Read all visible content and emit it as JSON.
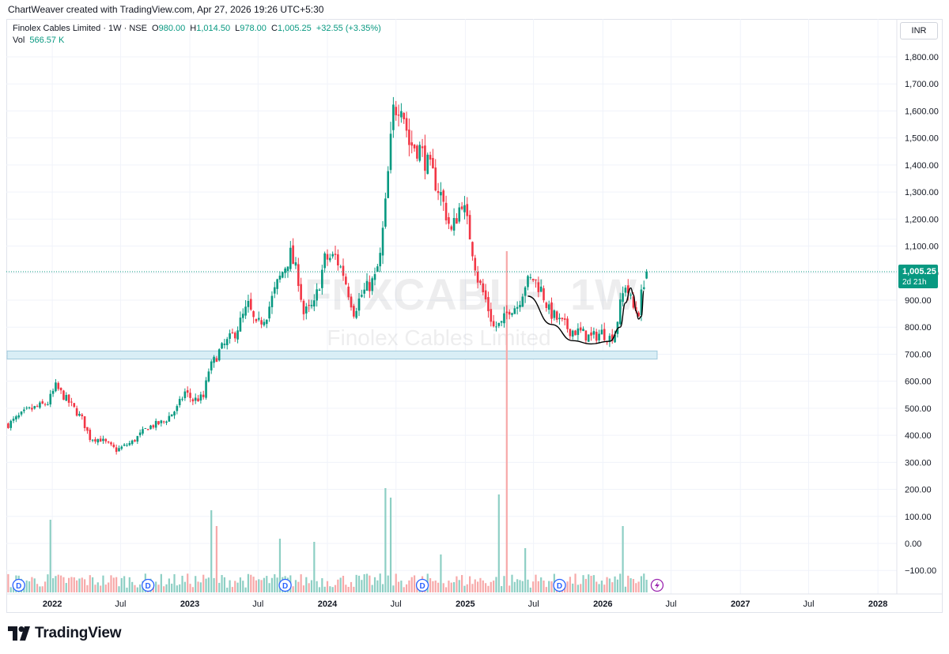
{
  "header": {
    "attribution": "ChartWeaver created with TradingView.com, Apr 27, 2026 19:26 UTC+5:30"
  },
  "legend": {
    "symbol": "Finolex Cables Limited · 1W · NSE",
    "o_label": "O",
    "o_value": "980.00",
    "h_label": "H",
    "h_value": "1,014.50",
    "l_label": "L",
    "l_value": "978.00",
    "c_label": "C",
    "c_value": "1,005.25",
    "change": "+32.55 (+3.35%)",
    "vol_label": "Vol",
    "vol_value": "566.57 K"
  },
  "currency": "INR",
  "watermark": {
    "line1": "FNXCABLE, 1W",
    "line2": "Finolex Cables Limited"
  },
  "footer": {
    "brand": "TradingView"
  },
  "colors": {
    "up": "#089981",
    "down": "#f23645",
    "vol_up": "#8dcfc4",
    "vol_down": "#f7a9a9",
    "zone": "#d9eef6",
    "zone_border": "#9fc9dc",
    "curve": "#000000",
    "event_d": "#2962ff",
    "event_bolt": "#9c27b0"
  },
  "price_label": {
    "value": "1,005.25",
    "countdown": "2d 21h"
  },
  "chart_data": {
    "type": "candlestick",
    "interval": "1W",
    "x_range": [
      "2021-09",
      "2028-02"
    ],
    "y_range": [
      -140,
      1880
    ],
    "y_ticks": [
      -100,
      0,
      100,
      200,
      300,
      400,
      500,
      600,
      700,
      800,
      900,
      1000,
      1100,
      1200,
      1300,
      1400,
      1500,
      1600,
      1700,
      1800
    ],
    "y_tick_labels": [
      "−100.00",
      "0.00",
      "100.00",
      "200.00",
      "300.00",
      "400.00",
      "500.00",
      "600.00",
      "700.00",
      "800.00",
      "900.00",
      "1,000.00",
      "1,100.00",
      "1,200.00",
      "1,300.00",
      "1,400.00",
      "1,500.00",
      "1,600.00",
      "1,700.00",
      "1,800.00"
    ],
    "x_ticks": [
      {
        "label": "2022",
        "date": "2022-01-01"
      },
      {
        "label": "Jul",
        "date": "2022-07-01"
      },
      {
        "label": "2023",
        "date": "2023-01-01"
      },
      {
        "label": "Jul",
        "date": "2023-07-01"
      },
      {
        "label": "2024",
        "date": "2024-01-01"
      },
      {
        "label": "Jul",
        "date": "2024-07-01"
      },
      {
        "label": "2025",
        "date": "2025-01-01"
      },
      {
        "label": "Jul",
        "date": "2025-07-01"
      },
      {
        "label": "2026",
        "date": "2026-01-01"
      },
      {
        "label": "Jul",
        "date": "2026-07-01"
      },
      {
        "label": "2027",
        "date": "2027-01-01"
      },
      {
        "label": "Jul",
        "date": "2027-07-01"
      },
      {
        "label": "2028",
        "date": "2028-01-01"
      }
    ],
    "first_bar_date": "2021-09-06",
    "last_bar_date": "2026-04-27",
    "close_anchors": [
      [
        "2021-09-06",
        440
      ],
      [
        "2021-10-25",
        490
      ],
      [
        "2021-12-20",
        520
      ],
      [
        "2022-01-10",
        580
      ],
      [
        "2022-02-21",
        510
      ],
      [
        "2022-03-21",
        460
      ],
      [
        "2022-04-11",
        390
      ],
      [
        "2022-05-09",
        385
      ],
      [
        "2022-06-20",
        345
      ],
      [
        "2022-08-01",
        375
      ],
      [
        "2022-09-12",
        430
      ],
      [
        "2022-10-24",
        450
      ],
      [
        "2022-11-28",
        500
      ],
      [
        "2022-12-19",
        560
      ],
      [
        "2023-01-09",
        530
      ],
      [
        "2023-02-06",
        540
      ],
      [
        "2023-02-20",
        640
      ],
      [
        "2023-03-20",
        710
      ],
      [
        "2023-05-01",
        780
      ],
      [
        "2023-06-05",
        880
      ],
      [
        "2023-06-26",
        800
      ],
      [
        "2023-07-24",
        850
      ],
      [
        "2023-08-21",
        960
      ],
      [
        "2023-09-25",
        1070
      ],
      [
        "2023-10-16",
        980
      ],
      [
        "2023-10-30",
        850
      ],
      [
        "2023-11-27",
        880
      ],
      [
        "2023-12-25",
        1050
      ],
      [
        "2024-01-22",
        1060
      ],
      [
        "2024-02-12",
        1000
      ],
      [
        "2024-03-11",
        860
      ],
      [
        "2024-04-01",
        920
      ],
      [
        "2024-05-06",
        980
      ],
      [
        "2024-05-20",
        1060
      ],
      [
        "2024-06-03",
        1250
      ],
      [
        "2024-06-24",
        1600
      ],
      [
        "2024-07-15",
        1640
      ],
      [
        "2024-08-05",
        1480
      ],
      [
        "2024-09-02",
        1460
      ],
      [
        "2024-10-07",
        1360
      ],
      [
        "2024-10-28",
        1290
      ],
      [
        "2024-11-25",
        1150
      ],
      [
        "2024-12-23",
        1270
      ],
      [
        "2025-01-13",
        1140
      ],
      [
        "2025-02-03",
        980
      ],
      [
        "2025-02-24",
        900
      ],
      [
        "2025-03-17",
        800
      ],
      [
        "2025-04-07",
        810
      ],
      [
        "2025-04-28",
        870
      ],
      [
        "2025-05-19",
        880
      ],
      [
        "2025-06-09",
        960
      ],
      [
        "2025-06-30",
        980
      ],
      [
        "2025-07-21",
        940
      ],
      [
        "2025-08-11",
        860
      ],
      [
        "2025-09-08",
        820
      ],
      [
        "2025-10-06",
        790
      ],
      [
        "2025-11-03",
        780
      ],
      [
        "2025-12-01",
        760
      ],
      [
        "2025-12-29",
        780
      ],
      [
        "2026-01-19",
        760
      ],
      [
        "2026-02-02",
        780
      ],
      [
        "2026-02-16",
        880
      ],
      [
        "2026-03-02",
        960
      ],
      [
        "2026-03-23",
        870
      ],
      [
        "2026-04-06",
        860
      ],
      [
        "2026-04-20",
        972.7
      ],
      [
        "2026-04-27",
        1005.25
      ]
    ],
    "last_bar": {
      "date": "2026-04-27",
      "open": 980.0,
      "high": 1014.5,
      "low": 978.0,
      "close": 1005.25,
      "volume": 566570
    },
    "volume_spikes": [
      {
        "date": "2021-12-27",
        "volume": 2.3
      },
      {
        "date": "2023-02-27",
        "volume": 2.6
      },
      {
        "date": "2023-03-13",
        "volume": 2.1
      },
      {
        "date": "2023-08-28",
        "volume": 1.7
      },
      {
        "date": "2023-11-27",
        "volume": 1.6
      },
      {
        "date": "2024-06-03",
        "volume": 3.3
      },
      {
        "date": "2024-06-17",
        "volume": 3.0
      },
      {
        "date": "2024-10-28",
        "volume": 1.2
      },
      {
        "date": "2025-03-31",
        "volume": 3.1
      },
      {
        "date": "2025-04-21",
        "volume": 10.8
      },
      {
        "date": "2025-06-09",
        "volume": 1.4
      },
      {
        "date": "2026-02-23",
        "volume": 2.1
      }
    ],
    "support_zone": {
      "low": 682,
      "high": 712,
      "from": "2021-09-06",
      "to": "2026-05-25"
    },
    "cup_curve": [
      [
        "2025-06-16",
        915
      ],
      [
        "2025-08-18",
        810
      ],
      [
        "2025-10-13",
        750
      ],
      [
        "2025-12-01",
        738
      ],
      [
        "2026-01-19",
        748
      ],
      [
        "2026-02-16",
        800
      ],
      [
        "2026-03-02",
        890
      ],
      [
        "2026-03-16",
        945
      ],
      [
        "2026-03-23",
        920
      ],
      [
        "2026-03-30",
        860
      ],
      [
        "2026-04-06",
        830
      ],
      [
        "2026-04-13",
        840
      ],
      [
        "2026-04-20",
        935
      ]
    ],
    "events": [
      {
        "type": "dividend",
        "date": "2021-10-04",
        "label": "D"
      },
      {
        "type": "dividend",
        "date": "2022-09-12",
        "label": "D"
      },
      {
        "type": "dividend",
        "date": "2023-09-11",
        "label": "D"
      },
      {
        "type": "dividend",
        "date": "2024-09-09",
        "label": "D"
      },
      {
        "type": "dividend",
        "date": "2025-09-08",
        "label": "D"
      },
      {
        "type": "earnings",
        "date": "2026-05-25",
        "label": ""
      }
    ],
    "current_price": 1005.25
  }
}
